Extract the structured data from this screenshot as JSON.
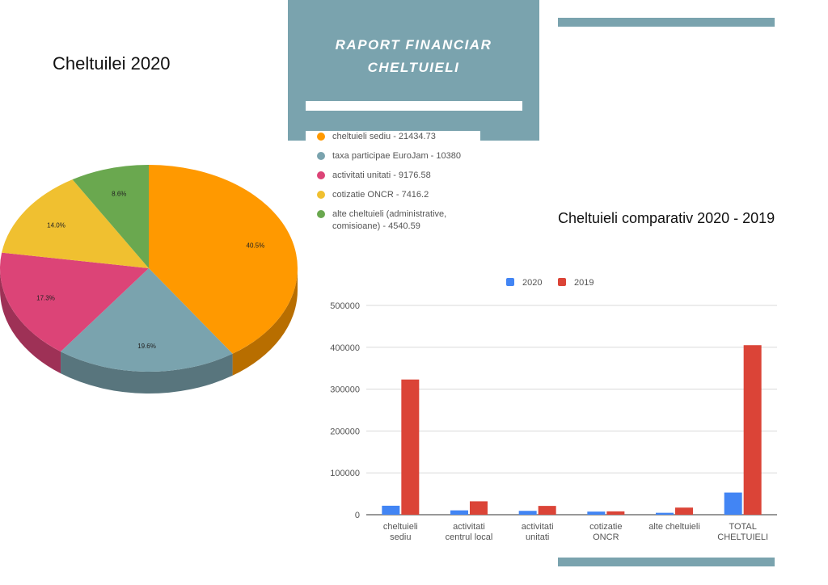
{
  "header": {
    "title_line1": "RAPORT FINANCIAR",
    "title_line2": "CHELTUIELI"
  },
  "colors": {
    "accent": "#7aa3ae"
  },
  "chart_data": [
    {
      "type": "pie",
      "title": "Cheltuilei 2020",
      "three_d": true,
      "slices": [
        {
          "label": "cheltuieli sediu - 21434.73",
          "value": 21434.73,
          "percent": "40.5%",
          "color": "#ff9900"
        },
        {
          "label": "taxa participae EuroJam - 10380",
          "value": 10380,
          "percent": "19.6%",
          "color": "#7aa3ae"
        },
        {
          "label": "activitati unitati - 9176.58",
          "value": 9176.58,
          "percent": "17.3%",
          "color": "#dc4477"
        },
        {
          "label": "cotizatie ONCR - 7416.2",
          "value": 7416.2,
          "percent": "14.0%",
          "color": "#f0c030"
        },
        {
          "label": "alte cheltuieli (administrative, comisioane) - 4540.59",
          "value": 4540.59,
          "percent": "8.6%",
          "color": "#6aa84f"
        }
      ]
    },
    {
      "type": "bar",
      "title": "Cheltuieli comparativ 2020 - 2019",
      "categories": [
        [
          "cheltuieli",
          "sediu"
        ],
        [
          "activitati",
          "centrul local"
        ],
        [
          "activitati",
          "unitati"
        ],
        [
          "cotizatie",
          "ONCR"
        ],
        [
          "alte cheltuieli"
        ],
        [
          "TOTAL",
          "CHELTUIELI"
        ]
      ],
      "series": [
        {
          "name": "2020",
          "color": "#4285f4",
          "values": [
            21434.73,
            10380,
            9176.58,
            7416.2,
            4540.59,
            52948.1
          ]
        },
        {
          "name": "2019",
          "color": "#db4437",
          "values": [
            323000,
            32000,
            21000,
            8000,
            17000,
            405000
          ]
        }
      ],
      "yticks": [
        "0",
        "100000",
        "200000",
        "300000",
        "400000",
        "500000"
      ],
      "ylim": [
        0,
        500000
      ],
      "grid": true,
      "legend": "top"
    }
  ]
}
